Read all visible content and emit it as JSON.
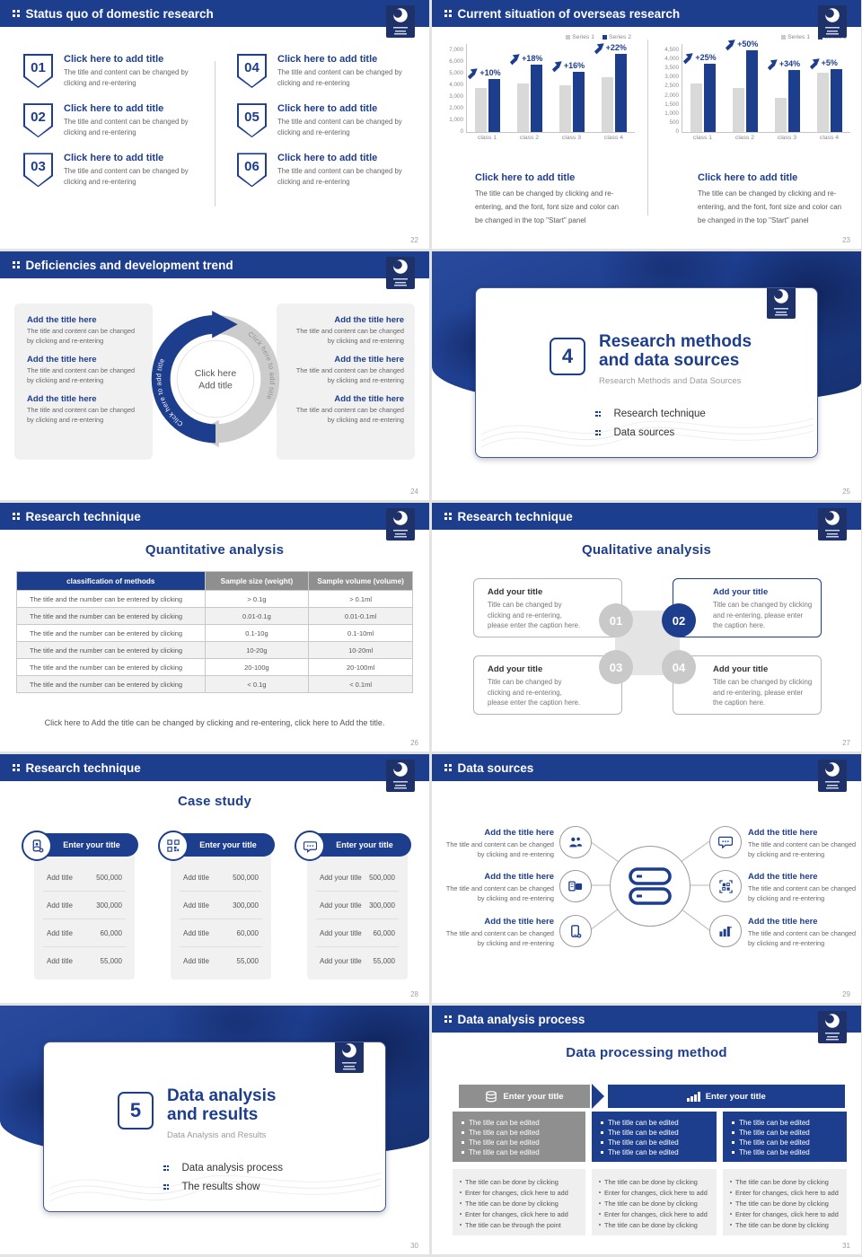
{
  "colors": {
    "accent": "#1d3d8d",
    "series1": "#c9c9c9",
    "gray_bar": "#8f8f8f"
  },
  "slides": {
    "s1": {
      "header": "Status quo of domestic research",
      "page": "22",
      "item_title": "Click here to add title",
      "item_body": "The title and content can be changed by clicking and re-entering",
      "items": [
        {
          "num": "01"
        },
        {
          "num": "02"
        },
        {
          "num": "03"
        },
        {
          "num": "04"
        },
        {
          "num": "05"
        },
        {
          "num": "06"
        }
      ]
    },
    "s2": {
      "header": "Current situation of overseas research",
      "page": "23",
      "block_title": "Click here to add title",
      "block_body": "The title can be changed by clicking and re-entering, and the font, font size and color can be changed in the top \"Start\" panel"
    },
    "s3": {
      "header": "Deficiencies and development trend",
      "page": "24",
      "item_title": "Add the title here",
      "item_body": "The title and content can be changed by clicking and re-entering",
      "center_line1": "Click here",
      "center_line2": "Add title",
      "arc_text": "Click here to add title"
    },
    "s4": {
      "page": "25",
      "num": "4",
      "title_line1": "Research methods",
      "title_line2": "and data sources",
      "subtitle": "Research Methods and Data Sources",
      "bullets": [
        "Research technique",
        "Data sources"
      ]
    },
    "s5": {
      "header": "Research technique",
      "page": "26",
      "title": "Quantitative analysis",
      "table": {
        "headers": [
          "classification of methods",
          "Sample size (weight)",
          "Sample volume (volume)"
        ],
        "row_label": "The title and the number can be entered by clicking",
        "rows": [
          [
            "> 0.1g",
            "> 0.1ml"
          ],
          [
            "0.01-0.1g",
            "0.01-0.1ml"
          ],
          [
            "0.1-10g",
            "0.1-10ml"
          ],
          [
            "10-20g",
            "10-20ml"
          ],
          [
            "20-100g",
            "20-100ml"
          ],
          [
            "< 0.1g",
            "< 0.1ml"
          ]
        ]
      },
      "caption": "Click here to Add the title can be changed by clicking and re-entering, click here to Add the title."
    },
    "s6": {
      "header": "Research technique",
      "page": "27",
      "title": "Qualitative analysis",
      "card_title": "Add your title",
      "card_body": "Title can be changed by clicking and re-entering, please enter the caption here.",
      "nums": [
        "01",
        "02",
        "03",
        "04"
      ]
    },
    "s7": {
      "header": "Research technique",
      "page": "28",
      "title": "Case study",
      "card_header": "Enter your title",
      "cards": [
        {
          "label": "Add title"
        },
        {
          "label": "Add title"
        },
        {
          "label": "Add your title"
        }
      ],
      "values": [
        "500,000",
        "300,000",
        "60,000",
        "55,000"
      ]
    },
    "s8": {
      "header": "Data sources",
      "page": "29",
      "item_title": "Add the title here",
      "item_body": "The title and content can be changed by clicking and re-entering"
    },
    "s9": {
      "page": "30",
      "num": "5",
      "title_line1": "Data analysis",
      "title_line2": "and results",
      "subtitle": "Data Analysis and Results",
      "bullets": [
        "Data analysis process",
        "The results show"
      ]
    },
    "s10": {
      "header": "Data analysis process",
      "page": "31",
      "title": "Data processing method",
      "step1_label": "Enter your title",
      "step2_label": "Enter your title",
      "edit_bullet": "The title can be edited",
      "lists": [
        [
          "The title can be done by clicking",
          "Enter for changes, click here to add",
          "The title can be done by clicking",
          "Enter for changes, click here to add",
          "The title can be through the point"
        ],
        [
          "The title can be done by clicking",
          "Enter for changes, click here to add",
          "The title can be done by clicking",
          "Enter for changes, click here to add",
          "The title can be done by clicking"
        ],
        [
          "The title can be done by clicking",
          "Enter for changes, click here to add",
          "The title can be done by clicking",
          "Enter for changes, click here to add",
          "The title can be done by clicking"
        ]
      ]
    }
  },
  "chart_data": [
    {
      "type": "bar",
      "title": "",
      "xlabel": "",
      "ylabel": "",
      "categories": [
        "class 1",
        "class 2",
        "class 3",
        "class 4"
      ],
      "series": [
        {
          "name": "Series 1",
          "values": [
            3500,
            3850,
            3700,
            4350
          ]
        },
        {
          "name": "Series 2",
          "values": [
            4250,
            5350,
            4800,
            6200
          ]
        }
      ],
      "annotations": [
        "+10%",
        "+18%",
        "+16%",
        "+22%"
      ],
      "ylim": [
        0,
        7000
      ],
      "ytick": 1000,
      "grid": false,
      "legend_position": "top-right"
    },
    {
      "type": "bar",
      "title": "",
      "xlabel": "",
      "ylabel": "",
      "categories": [
        "class 1",
        "class 2",
        "class 3",
        "class 4"
      ],
      "series": [
        {
          "name": "Series 1",
          "values": [
            2500,
            2250,
            1750,
            3050
          ]
        },
        {
          "name": "Series 2",
          "values": [
            3500,
            4200,
            3150,
            3200
          ]
        }
      ],
      "annotations": [
        "+25%",
        "+50%",
        "+34%",
        "+5%"
      ],
      "ylim": [
        0,
        4500
      ],
      "ytick": 500,
      "grid": false,
      "legend_position": "top-right"
    }
  ]
}
